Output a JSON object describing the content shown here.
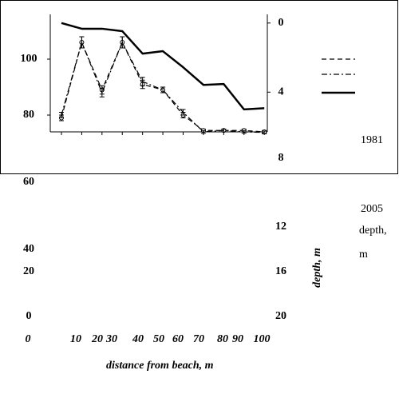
{
  "chart_data": {
    "type": "line",
    "x": [
      0,
      10,
      20,
      30,
      40,
      50,
      60,
      70,
      80,
      90,
      100
    ],
    "xlim": [
      -5.5,
      101.5
    ],
    "xlabel": "distance from beach, m",
    "ylim": [
      74,
      116
    ],
    "yticks": [
      100,
      80,
      60,
      40,
      20,
      0
    ],
    "y2lim": [
      -0.5,
      6.3
    ],
    "y2_inverted": true,
    "y2ticks": [
      0,
      4,
      8,
      12,
      16,
      20
    ],
    "y2label": "depth, m",
    "series": [
      {
        "name": "1981",
        "color": "#000000",
        "dash": "6 4",
        "values": [
          79,
          106,
          89,
          106,
          91,
          89,
          80,
          74.5,
          74.5,
          74.5,
          74
        ],
        "errors": [
          1,
          2,
          1.5,
          2,
          1.5,
          1,
          1,
          0.5,
          0.5,
          0.5,
          0.5
        ]
      },
      {
        "name": "2005",
        "color": "#000000",
        "dash": "7 3 2 3",
        "values": [
          80,
          106,
          88,
          106,
          92,
          89,
          81,
          74,
          74.5,
          74,
          73.8
        ],
        "errors": [
          1,
          2,
          1.5,
          2,
          1.5,
          1,
          1,
          0.5,
          0.5,
          0.5,
          0.5
        ]
      },
      {
        "name": "depth, m",
        "color": "#000000",
        "axis": "y2",
        "values": [
          0,
          0.33,
          0.33,
          0.47,
          1.77,
          1.63,
          2.56,
          3.58,
          3.53,
          5.0,
          4.93
        ]
      }
    ]
  }
}
